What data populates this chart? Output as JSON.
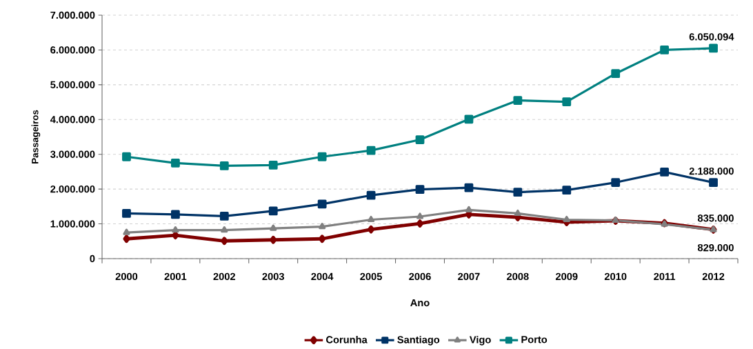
{
  "chart_data": {
    "type": "line",
    "xlabel": "Ano",
    "ylabel": "Passageiros",
    "categories": [
      "2000",
      "2001",
      "2002",
      "2003",
      "2004",
      "2005",
      "2006",
      "2007",
      "2008",
      "2009",
      "2010",
      "2011",
      "2012"
    ],
    "ylim": [
      0,
      7000000
    ],
    "yticks": [
      {
        "value": 0,
        "label": "0"
      },
      {
        "value": 1000000,
        "label": "1.000.000"
      },
      {
        "value": 2000000,
        "label": "2.000.000"
      },
      {
        "value": 3000000,
        "label": "3.000.000"
      },
      {
        "value": 4000000,
        "label": "4.000.000"
      },
      {
        "value": 5000000,
        "label": "5.000.000"
      },
      {
        "value": 6000000,
        "label": "6.000.000"
      },
      {
        "value": 7000000,
        "label": "7.000.000"
      }
    ],
    "grid": "y",
    "legend": "bottom",
    "series": [
      {
        "name": "Corunha",
        "color": "#800000",
        "marker": "diamond",
        "values": [
          570000,
          670000,
          510000,
          540000,
          570000,
          840000,
          1010000,
          1270000,
          1190000,
          1050000,
          1090000,
          1020000,
          835000
        ],
        "value_labels": [
          null,
          null,
          null,
          null,
          null,
          null,
          null,
          null,
          null,
          null,
          null,
          null,
          "835.000"
        ]
      },
      {
        "name": "Santiago",
        "color": "#003366",
        "marker": "square",
        "values": [
          1300000,
          1270000,
          1220000,
          1370000,
          1570000,
          1820000,
          1990000,
          2040000,
          1910000,
          1970000,
          2190000,
          2490000,
          2188000
        ],
        "value_labels": [
          null,
          null,
          null,
          null,
          null,
          null,
          null,
          null,
          null,
          null,
          null,
          null,
          "2.188.000"
        ]
      },
      {
        "name": "Vigo",
        "color": "#808080",
        "marker": "triangle",
        "values": [
          750000,
          820000,
          820000,
          870000,
          920000,
          1120000,
          1210000,
          1400000,
          1300000,
          1120000,
          1100000,
          990000,
          829000
        ],
        "value_labels": [
          null,
          null,
          null,
          null,
          null,
          null,
          null,
          null,
          null,
          null,
          null,
          null,
          "829.000"
        ]
      },
      {
        "name": "Porto",
        "color": "#008080",
        "marker": "square",
        "values": [
          2930000,
          2750000,
          2670000,
          2690000,
          2930000,
          3110000,
          3420000,
          4010000,
          4550000,
          4510000,
          5320000,
          6000000,
          6050094
        ],
        "value_labels": [
          null,
          null,
          null,
          null,
          null,
          null,
          null,
          null,
          null,
          null,
          null,
          null,
          "6.050.094"
        ]
      }
    ]
  }
}
